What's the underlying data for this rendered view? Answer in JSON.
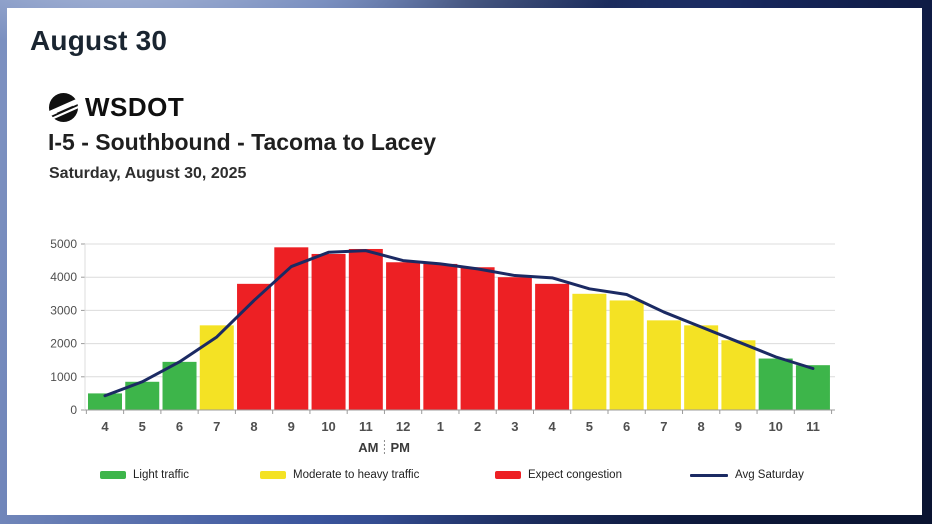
{
  "page_title": "August 30",
  "header": {
    "logo_text": "WSDOT",
    "chart_title": "I-5 - Southbound - Tacoma to Lacey",
    "chart_subtitle": "Saturday, August 30, 2025"
  },
  "colors": {
    "light_traffic": "#3db54a",
    "moderate_traffic": "#f4e224",
    "congestion": "#ed2024",
    "avg_line": "#1b2a63",
    "grid": "#dcdcdc",
    "axis": "#9b9b9b",
    "axis_text": "#4f4f4f"
  },
  "chart_data": {
    "type": "bar",
    "title": "I-5 - Southbound - Tacoma to Lacey",
    "subtitle": "Saturday, August 30, 2025",
    "ylim": [
      0,
      5000
    ],
    "yticks": [
      0,
      1000,
      2000,
      3000,
      4000,
      5000
    ],
    "grid": true,
    "hours": [
      "4",
      "5",
      "6",
      "7",
      "8",
      "9",
      "10",
      "11",
      "12",
      "1",
      "2",
      "3",
      "4",
      "5",
      "6",
      "7",
      "8",
      "9",
      "10",
      "11"
    ],
    "am_label": "AM",
    "pm_label": "PM",
    "am_pm_divider_after_index": 7,
    "bars": [
      {
        "hour": "4 AM",
        "value": 500,
        "category": "light_traffic"
      },
      {
        "hour": "5 AM",
        "value": 850,
        "category": "light_traffic"
      },
      {
        "hour": "6 AM",
        "value": 1450,
        "category": "light_traffic"
      },
      {
        "hour": "7 AM",
        "value": 2550,
        "category": "moderate_traffic"
      },
      {
        "hour": "8 AM",
        "value": 3800,
        "category": "congestion"
      },
      {
        "hour": "9 AM",
        "value": 4900,
        "category": "congestion"
      },
      {
        "hour": "10 AM",
        "value": 4700,
        "category": "congestion"
      },
      {
        "hour": "11 AM",
        "value": 4850,
        "category": "congestion"
      },
      {
        "hour": "12 PM",
        "value": 4450,
        "category": "congestion"
      },
      {
        "hour": "1 PM",
        "value": 4400,
        "category": "congestion"
      },
      {
        "hour": "2 PM",
        "value": 4300,
        "category": "congestion"
      },
      {
        "hour": "3 PM",
        "value": 4000,
        "category": "congestion"
      },
      {
        "hour": "4 PM",
        "value": 3800,
        "category": "congestion"
      },
      {
        "hour": "5 PM",
        "value": 3500,
        "category": "moderate_traffic"
      },
      {
        "hour": "6 PM",
        "value": 3300,
        "category": "moderate_traffic"
      },
      {
        "hour": "7 PM",
        "value": 2700,
        "category": "moderate_traffic"
      },
      {
        "hour": "8 PM",
        "value": 2550,
        "category": "moderate_traffic"
      },
      {
        "hour": "9 PM",
        "value": 2100,
        "category": "moderate_traffic"
      },
      {
        "hour": "10 PM",
        "value": 1550,
        "category": "light_traffic"
      },
      {
        "hour": "11 PM",
        "value": 1350,
        "category": "light_traffic"
      }
    ],
    "line_series": {
      "name": "Avg Saturday",
      "values": [
        430,
        850,
        1450,
        2200,
        3300,
        4320,
        4750,
        4800,
        4500,
        4400,
        4250,
        4050,
        3980,
        3650,
        3480,
        2950,
        2500,
        2050,
        1600,
        1250
      ]
    }
  },
  "legend": {
    "items": [
      {
        "label": "Light traffic",
        "color": "#3db54a",
        "type": "swatch"
      },
      {
        "label": "Moderate to heavy traffic",
        "color": "#f4e224",
        "type": "swatch"
      },
      {
        "label": "Expect congestion",
        "color": "#ed2024",
        "type": "swatch"
      },
      {
        "label": "Avg Saturday",
        "color": "#1b2a63",
        "type": "line"
      }
    ]
  }
}
